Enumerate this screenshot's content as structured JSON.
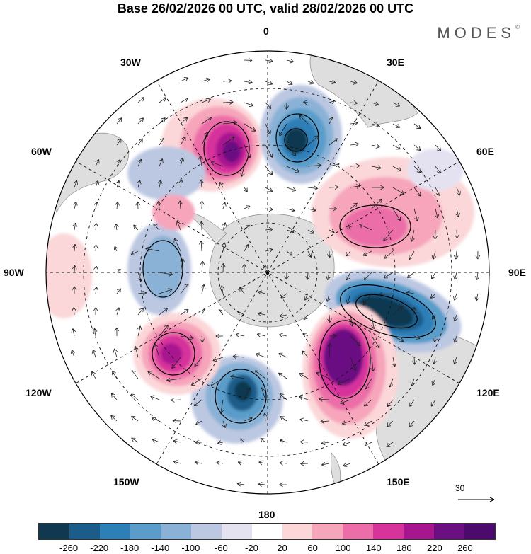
{
  "header": {
    "title": "Base 26/02/2026 00 UTC, valid 28/02/2026 00 UTC",
    "brand": "MODES",
    "brand_mark": "©"
  },
  "map": {
    "projection": "south-polar-stereographic",
    "longitude_labels": {
      "lon_0": "0",
      "lon_30e": "30E",
      "lon_60e": "60E",
      "lon_90e": "90E",
      "lon_120e": "120E",
      "lon_150e": "150E",
      "lon_180": "180",
      "lon_150w": "150W",
      "lon_120w": "120W",
      "lon_90w": "90W",
      "lon_60w": "60W",
      "lon_30w": "30W"
    },
    "anomaly_centres": [
      {
        "name": "positive-anomaly-south-atlantic",
        "sign": "positive",
        "value": 260
      },
      {
        "name": "negative-anomaly-greenwich",
        "sign": "negative",
        "value": -260
      },
      {
        "name": "positive-anomaly-indian-ocean",
        "sign": "positive",
        "value": 180
      },
      {
        "name": "negative-anomaly-south-indian",
        "sign": "negative",
        "value": -260
      },
      {
        "name": "positive-anomaly-australia",
        "sign": "positive",
        "value": 260
      },
      {
        "name": "negative-anomaly-ross-sea",
        "sign": "negative",
        "value": -260
      },
      {
        "name": "positive-anomaly-south-pacific",
        "sign": "positive",
        "value": 260
      },
      {
        "name": "negative-anomaly-amundsen",
        "sign": "negative",
        "value": -140
      }
    ],
    "reference_vector_label": "30"
  },
  "colorbar": {
    "tick_labels": [
      "-260",
      "-220",
      "-180",
      "-140",
      "-100",
      "-60",
      "-20",
      "20",
      "60",
      "100",
      "140",
      "180",
      "220",
      "260"
    ],
    "colors": [
      "#10384f",
      "#1a5d8a",
      "#2d7fb8",
      "#5a9dca",
      "#8ab2d6",
      "#bcc8e2",
      "#e4e2f1",
      "#ffffff",
      "#fbd7d9",
      "#f6a5bb",
      "#ec6ea8",
      "#d6339b",
      "#a7158f",
      "#6b0f82",
      "#4c0a6e"
    ]
  }
}
